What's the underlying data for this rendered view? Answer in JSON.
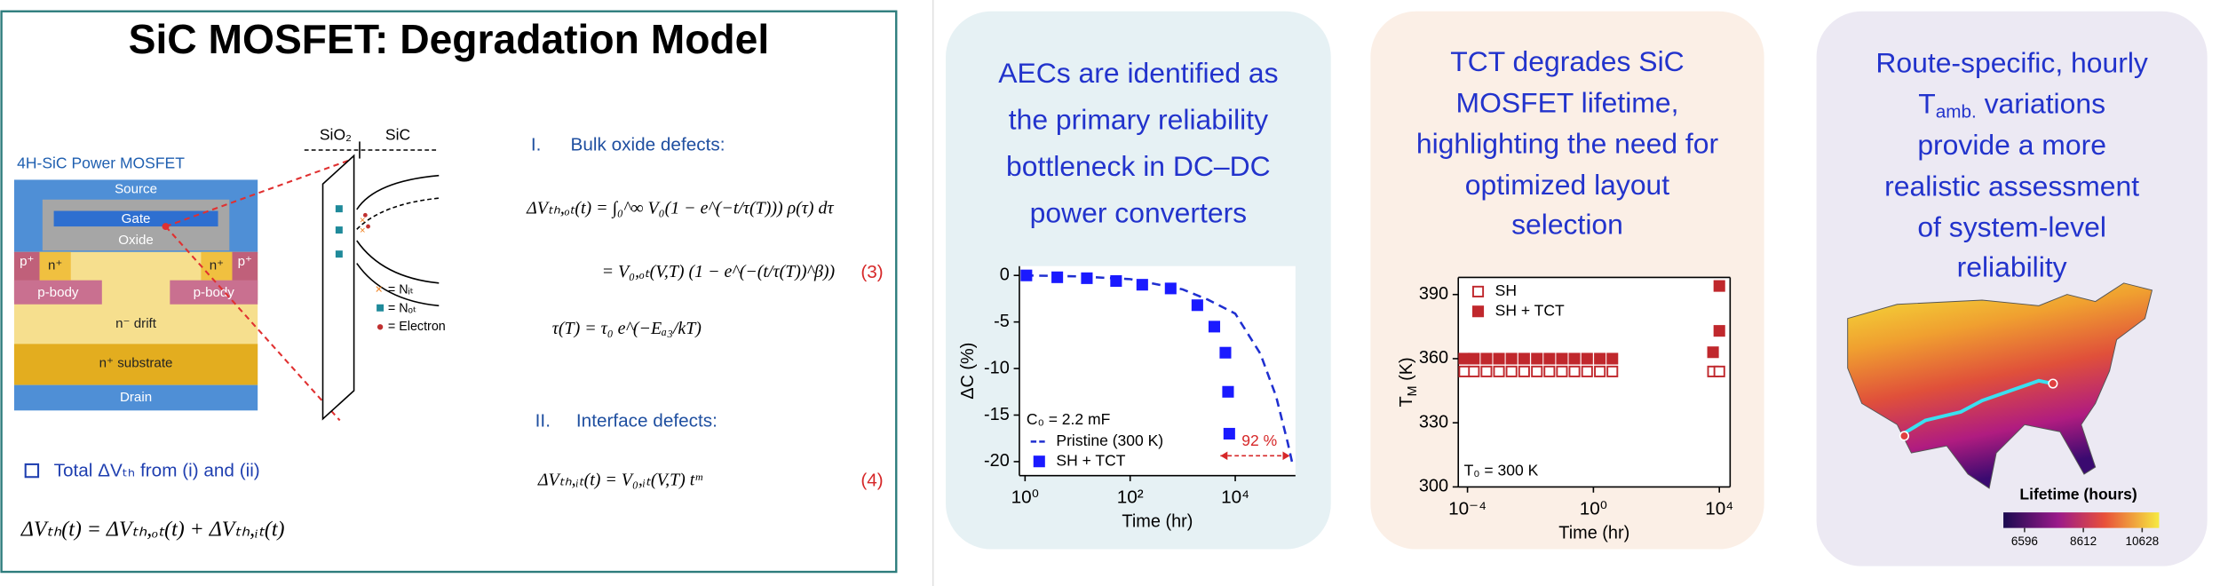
{
  "slide": {
    "title": "SiC MOSFET: Degradation Model",
    "device": {
      "caption": "4H-SiC Power MOSFET",
      "source": "Source",
      "gate": "Gate",
      "oxide": "Oxide",
      "p_plus": "p⁺",
      "n_plus": "n⁺",
      "p_body": "p-body",
      "drift": "n⁻ drift",
      "substrate": "n⁺ substrate",
      "drain": "Drain"
    },
    "band": {
      "oxide": "SiO₂",
      "semiconductor": "SiC",
      "legend": [
        "= Nᵢₜ",
        "= Nₒₜ",
        "= Electron"
      ]
    },
    "equations": {
      "bulk_heading": "I.",
      "bulk_title": "Bulk oxide defects:",
      "eq1": "ΔVₜₕ,ₒₜ(t) = ∫₀^∞ V₀(1 − e^(−t/τ(T))) ρ(τ) dτ",
      "eq2": "= V₀,ₒₜ(V,T) (1 − e^(−(t/τ(T))^β))",
      "eq2_number": "(3)",
      "eq3": "τ(T) = τ₀ e^(−Eₐ₃/kT)",
      "interface_heading": "II.",
      "interface_title": "Interface defects:",
      "eq4": "ΔVₜₕ,ᵢₜ(t) = V₀,ᵢₜ(V,T) tᵐ",
      "eq4_number": "(4)",
      "total_label": "Total ΔVₜₕ from (i) and (ii)",
      "total_eq": "ΔVₜₕ(t) = ΔVₜₕ,ₒₜ(t) + ΔVₜₕ,ᵢₜ(t)"
    }
  },
  "panels": [
    {
      "lines": [
        "AECs are identified as",
        "the primary reliability",
        "bottleneck in DC–DC",
        "power converters"
      ]
    },
    {
      "lines": [
        "TCT degrades SiC",
        "MOSFET lifetime,",
        "highlighting the need for",
        "optimized layout",
        "selection"
      ]
    },
    {
      "first_line": "Route-specific, hourly",
      "symbol": "T",
      "symbol_sub": "amb.",
      "symbol_rest": " variations",
      "lines": [
        "provide a more",
        "realistic assessment",
        "of system-level",
        "reliability"
      ],
      "colorbar": {
        "title": "Lifetime (hours)",
        "clim": [
          5870,
          11210
        ],
        "ticks": [
          6596,
          8612,
          10628
        ]
      }
    }
  ],
  "chart_data": [
    {
      "type": "scatter",
      "x_label": "Time (hr)",
      "y_label": "ΔC (%)",
      "x_scale": "log",
      "frame": false,
      "xlim": [
        0.78,
        140000
      ],
      "ylim": [
        -21.5,
        1
      ],
      "xticks": [
        {
          "value": 1,
          "label": "10⁰"
        },
        {
          "value": 100,
          "label": "10²"
        },
        {
          "value": 10000,
          "label": "10⁴"
        }
      ],
      "yticks": [
        0,
        -5,
        -10,
        -15,
        -20
      ],
      "legend": "lower left",
      "annotations": [
        {
          "text": "C₀ = 2.2 mF",
          "color": "#000000"
        },
        {
          "text": "92 %",
          "color": "#d62728"
        }
      ],
      "series": [
        {
          "name": "Pristine (300 K)",
          "color": "#1f2fd0",
          "line": "dashed",
          "x": [
            1,
            10,
            100,
            1000,
            3000,
            10000,
            30000,
            60000,
            100000,
            120000
          ],
          "values": [
            0,
            -0.1,
            -0.4,
            -1.5,
            -2.6,
            -4.1,
            -8.4,
            -13,
            -18,
            -20
          ]
        },
        {
          "name": "SH + TCT",
          "color": "#1a1aff",
          "marker": "square",
          "x": [
            1.06,
            4.1,
            15,
            54,
            170,
            590,
            1900,
            4000,
            6500,
            7300,
            7700
          ],
          "values": [
            0,
            -0.2,
            -0.3,
            -0.6,
            -1,
            -1.4,
            -3.2,
            -5.5,
            -8.3,
            -12.5,
            -17
          ]
        }
      ]
    },
    {
      "type": "scatter",
      "x_label": "Time (hr)",
      "y_label": {
        "text": "T",
        "sub": "M",
        "rest": " (K)"
      },
      "x_scale": "log",
      "frame": true,
      "xlim": [
        5.1e-05,
        22000
      ],
      "ylim": [
        300,
        398
      ],
      "xticks": [
        {
          "value": 0.0001,
          "label": "10⁻⁴"
        },
        {
          "value": 1,
          "label": "10⁰"
        },
        {
          "value": 10000,
          "label": "10⁴"
        }
      ],
      "yticks": [
        300,
        330,
        360,
        390
      ],
      "legend": "upper left",
      "annotations": [
        {
          "text": "T₀ = 300 K",
          "color": "#000000"
        }
      ],
      "series": [
        {
          "name": "SH",
          "color": "#c0282d",
          "marker": "square-open",
          "x": [
            7.9e-05,
            0.00016,
            0.0004,
            0.001,
            0.0025,
            0.0063,
            0.016,
            0.04,
            0.1,
            0.25,
            0.63,
            1.6,
            4,
            6300,
            10000
          ],
          "values": [
            354,
            354,
            354,
            354,
            354,
            354,
            354,
            354,
            354,
            354,
            354,
            354,
            354,
            354,
            354
          ]
        },
        {
          "name": "SH + TCT",
          "color": "#c0282d",
          "marker": "square",
          "x": [
            7.9e-05,
            0.00016,
            0.0004,
            0.001,
            0.0025,
            0.0063,
            0.016,
            0.04,
            0.1,
            0.25,
            0.63,
            1.6,
            4,
            6300,
            10000,
            10000
          ],
          "values": [
            360,
            360,
            360,
            360,
            360,
            360,
            360,
            360,
            360,
            360,
            360,
            360,
            360,
            363,
            373,
            394
          ]
        }
      ]
    }
  ]
}
